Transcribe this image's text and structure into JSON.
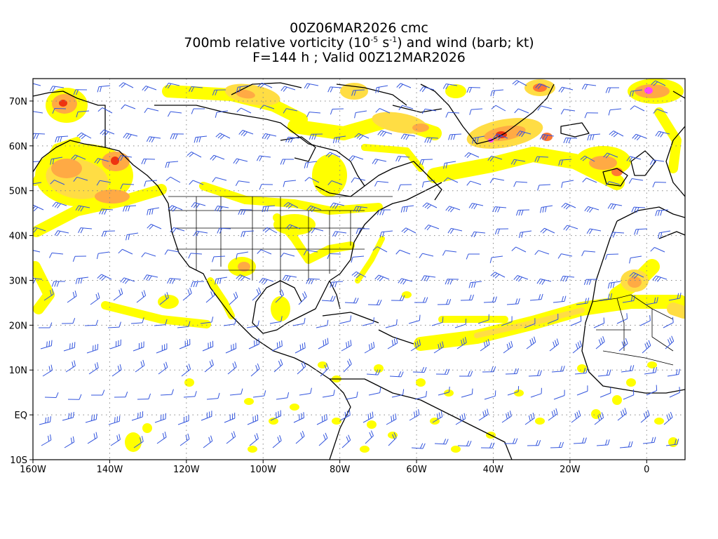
{
  "titles": {
    "line1": "00Z06MAR2026 cmc",
    "line2_pre": "700mb relative vorticity (10",
    "line2_exp1": "-5",
    "line2_mid": " s",
    "line2_exp2": "-1",
    "line2_post": ") and wind (barb; kt)",
    "line3": "F=144 h ; Valid 00Z12MAR2026"
  },
  "map": {
    "lon_range": [
      -160,
      10
    ],
    "lat_range": [
      -10,
      75
    ],
    "gridlines": "dotted",
    "lon_ticks": [
      "160W",
      "140W",
      "120W",
      "100W",
      "80W",
      "60W",
      "40W",
      "20W",
      "0"
    ],
    "lat_ticks": [
      "10S",
      "EQ",
      "10N",
      "20N",
      "30N",
      "40N",
      "50N",
      "60N",
      "70N"
    ],
    "barb_color": "#3355dd",
    "vorticity_colors": [
      "#ffff00",
      "#ffdd44",
      "#ffaa44",
      "#ff7733",
      "#ee3311",
      "#ff44ff"
    ]
  }
}
